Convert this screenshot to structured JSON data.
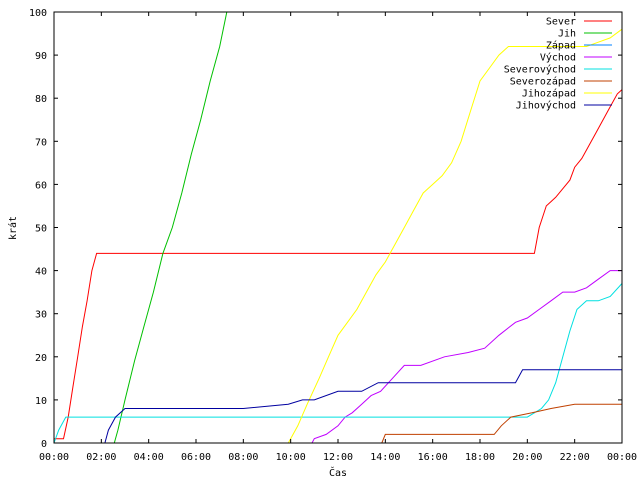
{
  "chart_data": {
    "type": "line",
    "xlabel": "Čas",
    "ylabel": "krát",
    "xlim": [
      0,
      24
    ],
    "ylim": [
      0,
      100
    ],
    "grid": false,
    "legend_position": "top-right",
    "x_ticks": [
      {
        "value": 0,
        "label": "00:00"
      },
      {
        "value": 2,
        "label": "02:00"
      },
      {
        "value": 4,
        "label": "04:00"
      },
      {
        "value": 6,
        "label": "06:00"
      },
      {
        "value": 8,
        "label": "08:00"
      },
      {
        "value": 10,
        "label": "10:00"
      },
      {
        "value": 12,
        "label": "12:00"
      },
      {
        "value": 14,
        "label": "14:00"
      },
      {
        "value": 16,
        "label": "16:00"
      },
      {
        "value": 18,
        "label": "18:00"
      },
      {
        "value": 20,
        "label": "20:00"
      },
      {
        "value": 22,
        "label": "22:00"
      },
      {
        "value": 24,
        "label": "00:00"
      }
    ],
    "y_ticks": [
      {
        "value": 0,
        "label": "0"
      },
      {
        "value": 10,
        "label": "10"
      },
      {
        "value": 20,
        "label": "20"
      },
      {
        "value": 30,
        "label": "30"
      },
      {
        "value": 40,
        "label": "40"
      },
      {
        "value": 50,
        "label": "50"
      },
      {
        "value": 60,
        "label": "60"
      },
      {
        "value": 70,
        "label": "70"
      },
      {
        "value": 80,
        "label": "80"
      },
      {
        "value": 90,
        "label": "90"
      },
      {
        "value": 100,
        "label": "100"
      }
    ],
    "series": [
      {
        "name": "Sever",
        "color": "#ff0000",
        "x": [
          0.0,
          0.4,
          0.6,
          0.8,
          1.0,
          1.2,
          1.4,
          1.6,
          1.8,
          2.3,
          10.0,
          15.0,
          20.3,
          20.5,
          20.8,
          21.0,
          21.2,
          21.5,
          21.8,
          22.0,
          22.3,
          22.6,
          22.9,
          23.2,
          23.5,
          23.8,
          24.0
        ],
        "y": [
          1,
          1,
          6,
          13,
          20,
          27,
          33,
          40,
          44,
          44,
          44,
          44,
          44,
          50,
          55,
          56,
          57,
          59,
          61,
          64,
          66,
          69,
          72,
          75,
          78,
          81,
          82
        ]
      },
      {
        "name": "Jih",
        "color": "#00c000",
        "x": [
          2.55,
          2.7,
          3.0,
          3.4,
          3.8,
          4.2,
          4.6,
          5.0,
          5.4,
          5.8,
          6.2,
          6.6,
          7.0,
          7.3
        ],
        "y": [
          0,
          3,
          10,
          19,
          27,
          35,
          44,
          50,
          58,
          67,
          75,
          84,
          92,
          100
        ]
      },
      {
        "name": "Západ",
        "color": "#0080ff",
        "x": [],
        "y": []
      },
      {
        "name": "Východ",
        "color": "#c000ff",
        "x": [
          10.9,
          11.0,
          11.5,
          12.0,
          12.3,
          12.6,
          13.0,
          13.4,
          13.8,
          14.3,
          14.8,
          15.5,
          16.5,
          17.5,
          18.2,
          18.8,
          19.5,
          20.0,
          20.5,
          21.0,
          21.5,
          22.0,
          22.5,
          23.0,
          23.5,
          24.0
        ],
        "y": [
          0,
          1,
          2,
          4,
          6,
          7,
          9,
          11,
          12,
          15,
          18,
          18,
          20,
          21,
          22,
          25,
          28,
          29,
          31,
          33,
          35,
          35,
          36,
          38,
          40,
          40
        ]
      },
      {
        "name": "Severovýchod",
        "color": "#00e0e0",
        "x": [
          0.0,
          0.2,
          0.5,
          5.0,
          10.0,
          15.0,
          19.0,
          20.0,
          20.3,
          20.6,
          20.9,
          21.2,
          21.5,
          21.8,
          22.1,
          22.5,
          23.0,
          23.5,
          24.0
        ],
        "y": [
          0,
          3,
          6,
          6,
          6,
          6,
          6,
          6,
          7,
          8,
          10,
          14,
          20,
          26,
          31,
          33,
          33,
          34,
          37
        ]
      },
      {
        "name": "Severozápad",
        "color": "#c04000",
        "x": [
          13.85,
          14.0,
          16.0,
          18.6,
          18.9,
          19.3,
          20.2,
          21.0,
          22.0,
          24.0
        ],
        "y": [
          0,
          2,
          2,
          2,
          4,
          6,
          7,
          8,
          9,
          9
        ]
      },
      {
        "name": "Jihozápad",
        "color": "#ffff00",
        "x": [
          9.9,
          10.3,
          10.7,
          11.2,
          11.6,
          12.0,
          12.4,
          12.8,
          13.2,
          13.6,
          14.0,
          14.4,
          14.8,
          15.2,
          15.6,
          16.0,
          16.4,
          16.8,
          17.2,
          17.6,
          18.0,
          18.4,
          18.8,
          19.2,
          19.6,
          20.0,
          20.5,
          21.0,
          21.5,
          22.0,
          22.5,
          23.0,
          23.5,
          24.0
        ],
        "y": [
          0,
          4,
          9,
          15,
          20,
          25,
          28,
          31,
          35,
          39,
          42,
          46,
          50,
          54,
          58,
          60,
          62,
          65,
          70,
          77,
          84,
          87,
          90,
          92,
          92,
          92,
          92,
          92,
          92,
          92,
          92,
          93,
          94,
          96
        ]
      },
      {
        "name": "Jihovýchod",
        "color": "#0000a0",
        "x": [
          2.15,
          2.3,
          2.6,
          3.0,
          4.0,
          6.0,
          8.0,
          9.9,
          10.5,
          11.0,
          12.0,
          13.0,
          13.7,
          14.5,
          16.0,
          18.0,
          19.5,
          19.8,
          21.0,
          22.0,
          24.0
        ],
        "y": [
          0,
          3,
          6,
          8,
          8,
          8,
          8,
          9,
          10,
          10,
          12,
          12,
          14,
          14,
          14,
          14,
          14,
          17,
          17,
          17,
          17
        ]
      }
    ]
  }
}
